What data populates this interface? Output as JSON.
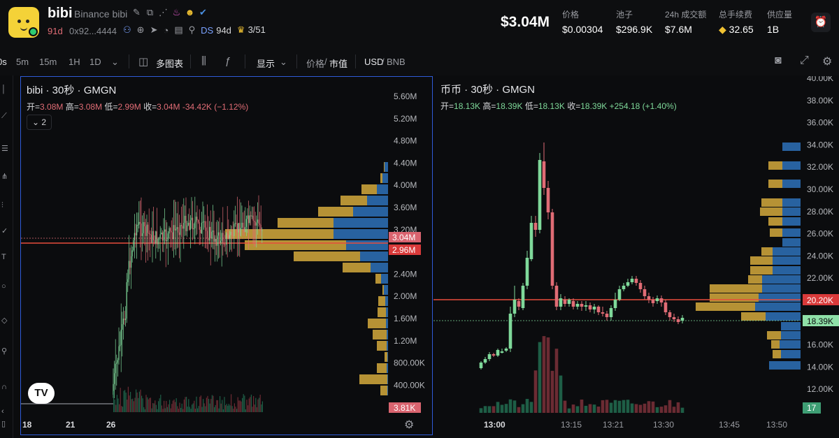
{
  "header": {
    "token_symbol": "bibi",
    "token_fullname": "Binance bibi",
    "age": "91d",
    "address": "0x92...4444",
    "ds_label": "DS",
    "ds_value": "94d",
    "crown_value": "3/51",
    "price_big": "$3.04M",
    "stats": [
      {
        "label": "价格",
        "value": "$0.00304"
      },
      {
        "label": "池子",
        "value": "$296.9K"
      },
      {
        "label": "24h 成交额",
        "value": "$7.6M"
      },
      {
        "label": "总手续费",
        "value": "32.65"
      },
      {
        "label": "供应量",
        "value": "1B"
      }
    ]
  },
  "toolbar": {
    "partial": "0s",
    "intervals": [
      "5m",
      "15m",
      "1H",
      "1D"
    ],
    "multi_chart": "多图表",
    "display": "显示",
    "price": "价格",
    "mcap": "市值",
    "currency": "USD",
    "currency_alt": "BNB"
  },
  "left_chart": {
    "title": "bibi · 30秒 · GMGN",
    "ohlc": {
      "o_label": "开=",
      "o": "3.08M",
      "h_label": "高=",
      "h": "3.08M",
      "l_label": "低=",
      "l": "2.99M",
      "c_label": "收=",
      "c": "3.04M",
      "chg": "-34.42K (−1.12%)"
    },
    "collapse_label": "2",
    "price_axis": [
      "5.60M",
      "5.20M",
      "4.80M",
      "4.40M",
      "4.00M",
      "3.60M",
      "3.20M",
      "2.80M",
      "2.40M",
      "2.00M",
      "1.60M",
      "1.20M",
      "800.00K",
      "400.00K"
    ],
    "price_tag_current": "3.04M",
    "price_tag_line": "2.96M",
    "volume_tag": "3.81K",
    "time_axis": [
      "18",
      "21",
      "26"
    ],
    "colors": {
      "up": "#7fd99a",
      "down": "#e06c75",
      "frame": "#2f5bd8"
    }
  },
  "right_chart": {
    "title": "币币 · 30秒 · GMGN",
    "ohlc": {
      "o_label": "开=",
      "o": "18.13K",
      "h_label": "高=",
      "h": "18.39K",
      "l_label": "低=",
      "l": "18.13K",
      "c_label": "收=",
      "c": "18.39K",
      "chg": "+254.18 (+1.40%)"
    },
    "price_axis": [
      "40.00K",
      "38.00K",
      "36.00K",
      "34.00K",
      "32.00K",
      "30.00K",
      "28.00K",
      "26.00K",
      "24.00K",
      "22.00K",
      "20.00K",
      "18.00K",
      "16.00K",
      "14.00K",
      "12.00K"
    ],
    "price_tag_line": "20.20K",
    "price_tag_current": "18.39K",
    "volume_tag": "17",
    "time_axis": [
      "13:00",
      "13:15",
      "13:21",
      "13:30",
      "13:45",
      "13:50"
    ]
  }
}
